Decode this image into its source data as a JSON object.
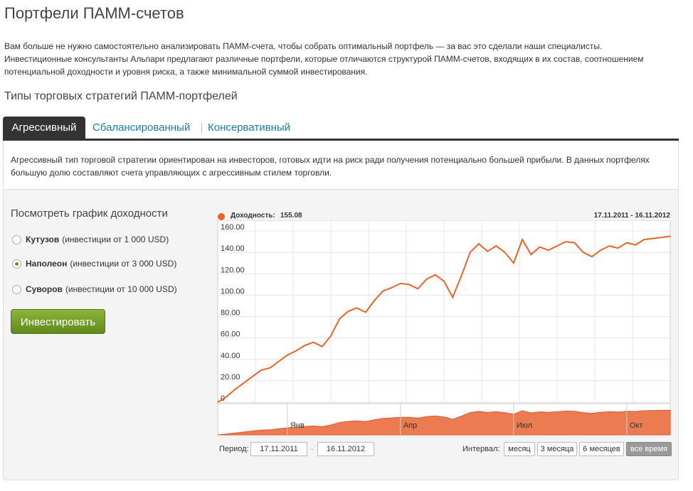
{
  "page": {
    "title": "Портфели ПАММ-счетов",
    "intro": [
      "Вам больше не нужно самостоятельно анализировать ПАММ-счета, чтобы собрать оптимальный портфель — за вас это сделали наши специалисты.",
      "Инвестиционные консультанты Альпари предлагают различные портфели, которые отличаются структурой ПАММ-счетов, входящих в их состав, соотношением",
      "потенциальной доходности и уровня риска, а также минимальной суммой инвестирования."
    ],
    "section_title": "Типы торговых стратегий ПАММ-портфелей"
  },
  "tabs": [
    {
      "label": "Агрессивный"
    },
    {
      "label": "Сбалансированный"
    },
    {
      "label": "Консервативный"
    }
  ],
  "description": [
    "Агрессивный тип торговой стратегии ориентирован на инвесторов, готовых идти на риск ради получения потенциально большей прибыли. В данных портфелях",
    "большую долю составляют счета управляющих с агрессивным стилем торговли."
  ],
  "panel": {
    "graph_title": "Посмотреть график доходности",
    "options": [
      {
        "name": "Кутузов",
        "note": "(инвестиции от 1 000 USD)",
        "checked": false
      },
      {
        "name": "Наполеон",
        "note": "(инвестиции от 3 000 USD)",
        "checked": true
      },
      {
        "name": "Суворов",
        "note": "(инвестиции от 10 000 USD)",
        "checked": false
      }
    ],
    "invest_button": "Инвестировать"
  },
  "chart_legend": {
    "label": "Доходность:",
    "value": "155.08",
    "range": "17.11.2011 - 16.11.2012"
  },
  "controls": {
    "period_label": "Период:",
    "date_from": "17.11.2011",
    "date_to": "16.11.2012",
    "dash": "-",
    "interval_label": "Интервал:",
    "intervals": [
      "месяц",
      "3 месяца",
      "6 месяцев",
      "все время"
    ]
  },
  "colors": {
    "line": "#e8642c",
    "navigator_fill": "#ec7b52",
    "accent": "#1a7fa6",
    "button": "#6e9a25"
  },
  "chart_data": {
    "type": "line",
    "title": "Доходность",
    "series": [
      {
        "name": "Доходность",
        "x": [
          0,
          1,
          2,
          3,
          4,
          5,
          6,
          7,
          8,
          9,
          10,
          11,
          12,
          13,
          14,
          15,
          16,
          17,
          18,
          19,
          20,
          21,
          22,
          23,
          24,
          25,
          26,
          27,
          28,
          29,
          30,
          31,
          32,
          33,
          34,
          35,
          36,
          37,
          38,
          39,
          40,
          41,
          42,
          43,
          44,
          45,
          46,
          47,
          48,
          49,
          50,
          51,
          52
        ],
        "values": [
          0,
          5,
          12,
          18,
          24,
          30,
          32,
          38,
          44,
          48,
          53,
          56,
          52,
          62,
          78,
          85,
          88,
          84,
          95,
          104,
          107,
          111,
          110,
          106,
          115,
          119,
          113,
          98,
          118,
          140,
          148,
          141,
          146,
          140,
          130,
          152,
          138,
          145,
          142,
          146,
          150,
          149,
          140,
          136,
          142,
          146,
          144,
          149,
          147,
          152,
          153,
          154,
          155.08
        ]
      }
    ],
    "x_axis_labels": [
      "Янв",
      "Апр",
      "Июл",
      "Окт"
    ],
    "x_label_positions": [
      8,
      21,
      34,
      47
    ],
    "ylim": [
      0,
      170
    ],
    "yticks": [
      0,
      20,
      40,
      60,
      80,
      100,
      120,
      140,
      160
    ],
    "ytick_labels": [
      "0",
      "20.00",
      "40.00",
      "60.00",
      "80.00",
      "100.00",
      "120.00",
      "140.00",
      "160.00"
    ]
  }
}
